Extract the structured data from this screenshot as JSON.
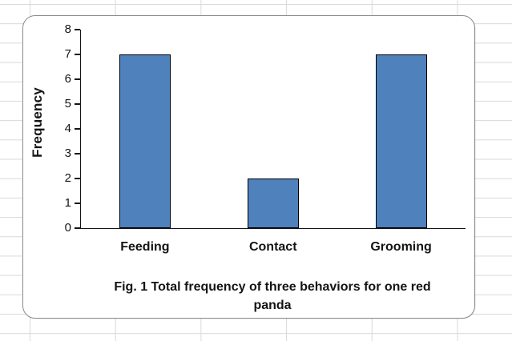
{
  "chart_data": {
    "type": "bar",
    "categories": [
      "Feeding",
      "Contact",
      "Grooming"
    ],
    "values": [
      7,
      2,
      7
    ],
    "title": "",
    "xlabel": "",
    "ylabel": "Frequency",
    "ylim": [
      0,
      8
    ],
    "yticks": [
      0,
      1,
      2,
      3,
      4,
      5,
      6,
      7,
      8
    ],
    "grid": false,
    "legend_position": "none",
    "bar_fill_color": "#4F81BD",
    "bar_border_color": "#000000",
    "axis_color": "#141414"
  },
  "caption": {
    "text": "Fig. 1 Total frequency of three behaviors for one red panda"
  }
}
